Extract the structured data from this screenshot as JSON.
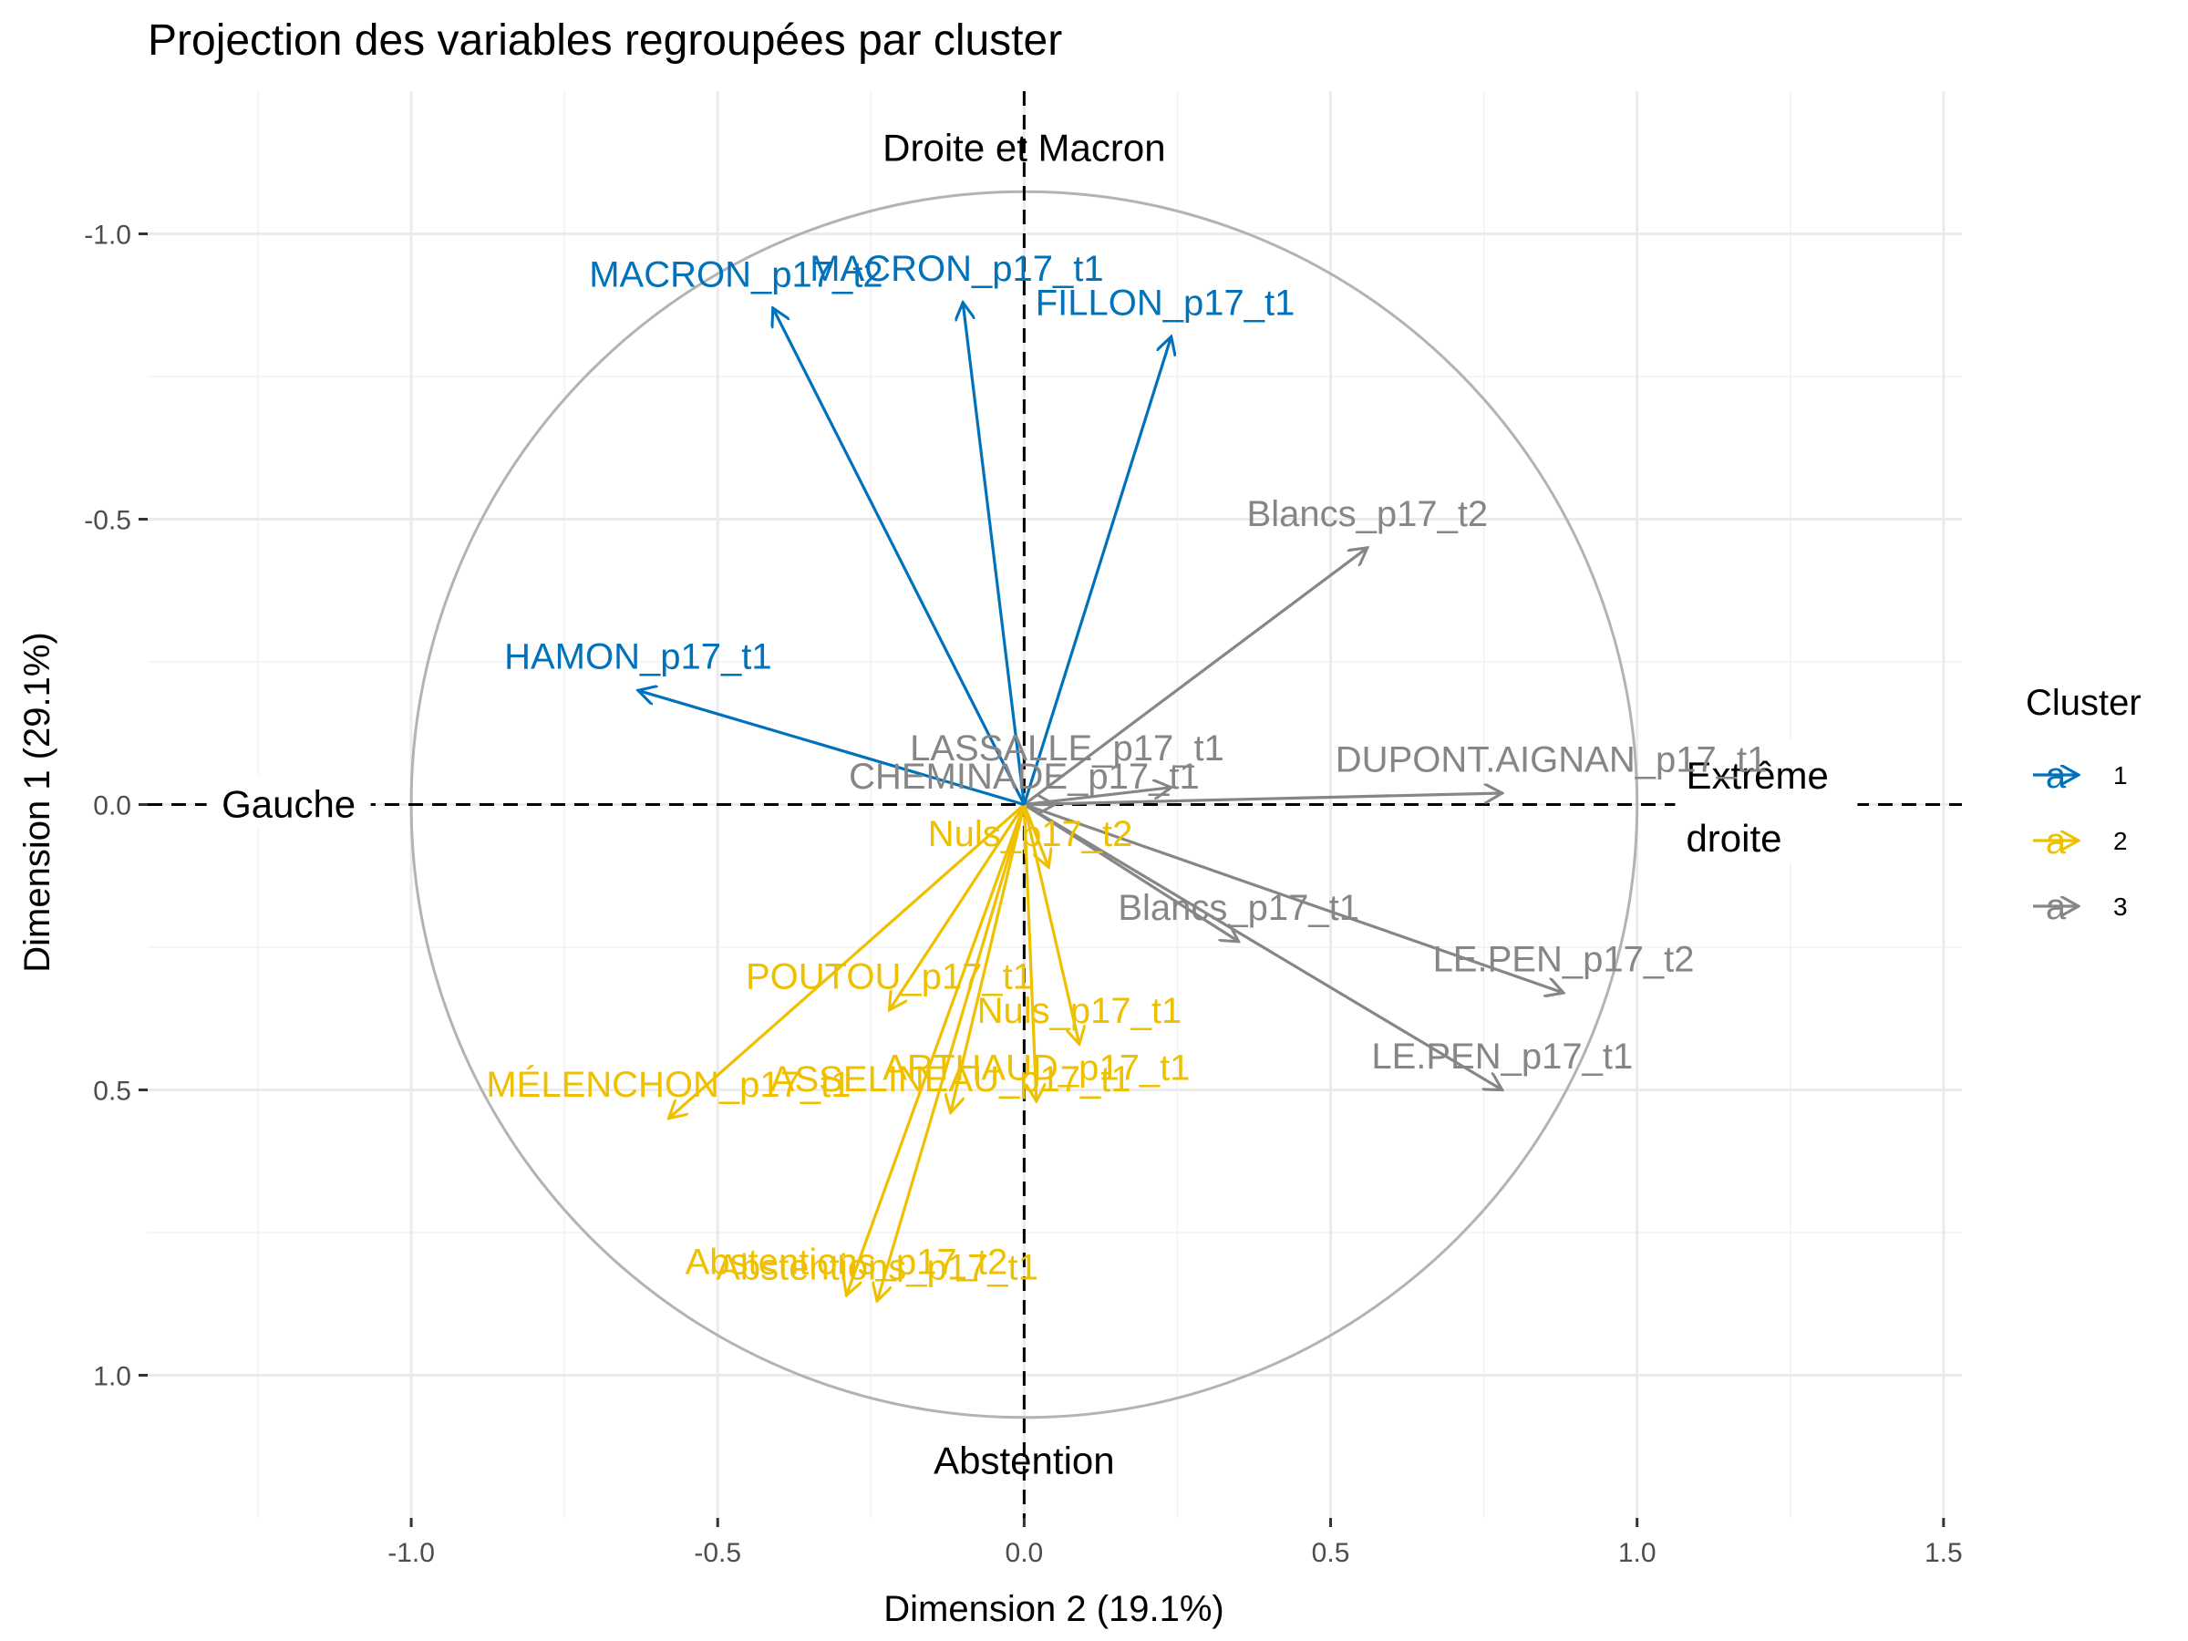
{
  "chart_data": {
    "type": "scatter",
    "title": "Projection des variables regroupées par cluster",
    "xlabel": "Dimension 2 (19.1%)",
    "ylabel": "Dimension 1 (29.1%)",
    "xlim": [
      -1.43,
      1.53
    ],
    "ylim": [
      -1.25,
      1.25
    ],
    "y_reversed": true,
    "grid": true,
    "x_ticks": [
      -1.0,
      -0.5,
      0.0,
      0.5,
      1.0,
      1.5
    ],
    "x_tick_labels": [
      "-1.0",
      "-0.5",
      "0.0",
      "0.5",
      "1.0",
      "1.5"
    ],
    "y_ticks": [
      -1.0,
      -0.5,
      0.0,
      0.5,
      1.0
    ],
    "y_tick_labels": [
      "-1.0",
      "-0.5",
      "0.0",
      "0.5",
      "1.0"
    ],
    "unit_circle": true,
    "reference_lines": {
      "x": 0,
      "y": 0,
      "style": "dashed"
    },
    "annotations": [
      {
        "text": "Droite et Macron",
        "x": 0.0,
        "y": -1.15
      },
      {
        "text": "Abstention",
        "x": 0.0,
        "y": 1.15
      },
      {
        "text": "Gauche",
        "x": -1.2,
        "y": 0.0
      },
      {
        "text": "Extrême",
        "x": 1.2,
        "y": -0.05
      },
      {
        "text": "droite",
        "x": 1.14,
        "y": 0.06
      }
    ],
    "series": [
      {
        "name": "1",
        "color": "#0072BC"
      },
      {
        "name": "2",
        "color": "#EFC000"
      },
      {
        "name": "3",
        "color": "#868686"
      }
    ],
    "legend": {
      "title": "Cluster",
      "position": "right",
      "glyph": "a"
    },
    "points": [
      {
        "label": "MACRON_p17_t2",
        "cluster": "1",
        "x": -0.41,
        "y": -0.87,
        "lx": -0.47,
        "ly": -0.93
      },
      {
        "label": "MACRON_p17_t1",
        "cluster": "1",
        "x": -0.1,
        "y": -0.88,
        "lx": -0.11,
        "ly": -0.94
      },
      {
        "label": "FILLON_p17_t1",
        "cluster": "1",
        "x": 0.24,
        "y": -0.82,
        "lx": 0.23,
        "ly": -0.88
      },
      {
        "label": "HAMON_p17_t1",
        "cluster": "1",
        "x": -0.63,
        "y": -0.2,
        "lx": -0.63,
        "ly": -0.26
      },
      {
        "label": "Blancs_p17_t2",
        "cluster": "3",
        "x": 0.56,
        "y": -0.45,
        "lx": 0.56,
        "ly": -0.51
      },
      {
        "label": "LASSALLE_p17_t1",
        "cluster": "3",
        "x": 0.24,
        "y": -0.03,
        "lx": 0.07,
        "ly": -0.1
      },
      {
        "label": "DUPONT.AIGNAN_p17_t1",
        "cluster": "3",
        "x": 0.78,
        "y": -0.02,
        "lx": 0.86,
        "ly": -0.08
      },
      {
        "label": "CHEMINADE_p17_t1",
        "cluster": "3",
        "x": 0.05,
        "y": 0.0,
        "lx": 0.0,
        "ly": -0.05
      },
      {
        "label": "Blancs_p17_t1",
        "cluster": "3",
        "x": 0.35,
        "y": 0.24,
        "lx": 0.35,
        "ly": 0.18
      },
      {
        "label": "LE.PEN_p17_t2",
        "cluster": "3",
        "x": 0.88,
        "y": 0.33,
        "lx": 0.88,
        "ly": 0.27
      },
      {
        "label": "LE.PEN_p17_t1",
        "cluster": "3",
        "x": 0.78,
        "y": 0.5,
        "lx": 0.78,
        "ly": 0.44
      },
      {
        "label": "Nuls_p17_t2",
        "cluster": "2",
        "x": 0.04,
        "y": 0.11,
        "lx": 0.01,
        "ly": 0.05
      },
      {
        "label": "POUTOU_p17_t1",
        "cluster": "2",
        "x": -0.22,
        "y": 0.36,
        "lx": -0.22,
        "ly": 0.3
      },
      {
        "label": "Nuls_p17_t1",
        "cluster": "2",
        "x": 0.09,
        "y": 0.42,
        "lx": 0.09,
        "ly": 0.36
      },
      {
        "label": "ARTHAUD_p17_t1",
        "cluster": "2",
        "x": 0.02,
        "y": 0.52,
        "lx": 0.02,
        "ly": 0.46
      },
      {
        "label": "MÉLENCHON_p17_t1",
        "cluster": "2",
        "x": -0.58,
        "y": 0.55,
        "lx": -0.58,
        "ly": 0.49
      },
      {
        "label": "ASSELINEAU_p17_t1",
        "cluster": "2",
        "x": -0.12,
        "y": 0.54,
        "lx": -0.12,
        "ly": 0.48
      },
      {
        "label": "Abstentions_p17_t2",
        "cluster": "2",
        "x": -0.29,
        "y": 0.86,
        "lx": -0.29,
        "ly": 0.8
      },
      {
        "label": "Abstentions_p17_t1",
        "cluster": "2",
        "x": -0.24,
        "y": 0.87,
        "lx": -0.24,
        "ly": 0.81
      }
    ]
  }
}
